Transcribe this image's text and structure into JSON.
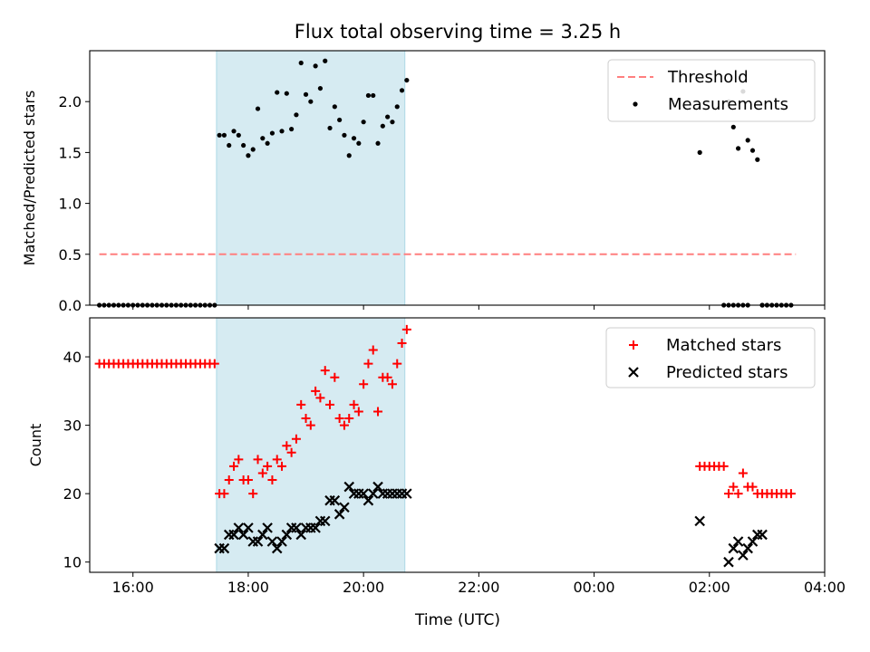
{
  "title": "Flux total observing time = 3.25 h",
  "xlabel": "Time (UTC)",
  "xticks": [
    "16:00",
    "18:00",
    "20:00",
    "22:00",
    "00:00",
    "02:00",
    "04:00"
  ],
  "colors": {
    "threshold": "#ff7f7f",
    "measurements": "#000000",
    "matched": "#ff0000",
    "predicted": "#000000",
    "shade": "#add8e6"
  },
  "chart_data": [
    {
      "type": "scatter",
      "ylabel": "Matched/Predicted stars",
      "yticks": [
        "0.0",
        "0.5",
        "1.0",
        "1.5",
        "2.0"
      ],
      "xlim": [
        "15:15",
        "04:00"
      ],
      "ylim": [
        0,
        2.5
      ],
      "shaded_span": [
        "17:27",
        "20:43"
      ],
      "legend_position": "upper right",
      "series": [
        {
          "name": "Threshold",
          "style": "dashed-line",
          "x": [
            "15:25",
            "03:30"
          ],
          "y": [
            0.5,
            0.5
          ]
        },
        {
          "name": "Measurements",
          "style": "dot",
          "x": [
            "15:25",
            "15:30",
            "15:35",
            "15:40",
            "15:45",
            "15:50",
            "15:55",
            "16:00",
            "16:05",
            "16:10",
            "16:15",
            "16:20",
            "16:25",
            "16:30",
            "16:35",
            "16:40",
            "16:45",
            "16:50",
            "16:55",
            "17:00",
            "17:05",
            "17:10",
            "17:15",
            "17:20",
            "17:25",
            "17:30",
            "17:35",
            "17:40",
            "17:45",
            "17:50",
            "17:55",
            "18:00",
            "18:05",
            "18:10",
            "18:15",
            "18:20",
            "18:25",
            "18:30",
            "18:35",
            "18:40",
            "18:45",
            "18:50",
            "18:55",
            "19:00",
            "19:05",
            "19:10",
            "19:15",
            "19:20",
            "19:25",
            "19:30",
            "19:35",
            "19:40",
            "19:45",
            "19:50",
            "19:55",
            "20:00",
            "20:05",
            "20:10",
            "20:15",
            "20:20",
            "20:25",
            "20:30",
            "20:35",
            "20:40",
            "20:45",
            "01:50",
            "02:20",
            "02:25",
            "02:30",
            "02:35",
            "02:40",
            "02:45",
            "02:50",
            "02:55",
            "02:15",
            "02:20",
            "02:25",
            "02:30",
            "02:35",
            "02:40",
            "02:55",
            "03:00",
            "03:05",
            "03:10",
            "03:15",
            "03:20",
            "03:25"
          ],
          "y": [
            0,
            0,
            0,
            0,
            0,
            0,
            0,
            0,
            0,
            0,
            0,
            0,
            0,
            0,
            0,
            0,
            0,
            0,
            0,
            0,
            0,
            0,
            0,
            0,
            0,
            1.67,
            1.67,
            1.57,
            1.71,
            1.67,
            1.57,
            1.47,
            1.53,
            1.93,
            1.64,
            1.59,
            1.69,
            2.09,
            1.71,
            2.08,
            1.73,
            1.87,
            2.38,
            2.07,
            2.0,
            2.35,
            2.13,
            2.4,
            1.74,
            1.95,
            1.82,
            1.67,
            1.47,
            1.64,
            1.59,
            1.8,
            2.06,
            2.06,
            1.59,
            1.76,
            1.85,
            1.8,
            1.95,
            2.11,
            2.21,
            1.5,
            2.0,
            1.75,
            1.54,
            2.1,
            1.62,
            1.52,
            1.43,
            0,
            0,
            0,
            0,
            0,
            0,
            0,
            0,
            0,
            0,
            0,
            0,
            0,
            0
          ]
        }
      ]
    },
    {
      "type": "scatter",
      "ylabel": "Count",
      "yticks": [
        "10",
        "20",
        "30",
        "40"
      ],
      "xlim": [
        "15:15",
        "04:00"
      ],
      "ylim": [
        8.5,
        45.7
      ],
      "shaded_span": [
        "17:27",
        "20:43"
      ],
      "legend_position": "upper right",
      "series": [
        {
          "name": "Matched stars",
          "style": "plus",
          "x": [
            "15:25",
            "15:30",
            "15:35",
            "15:40",
            "15:45",
            "15:50",
            "15:55",
            "16:00",
            "16:05",
            "16:10",
            "16:15",
            "16:20",
            "16:25",
            "16:30",
            "16:35",
            "16:40",
            "16:45",
            "16:50",
            "16:55",
            "17:00",
            "17:05",
            "17:10",
            "17:15",
            "17:20",
            "17:25",
            "17:30",
            "17:35",
            "17:40",
            "17:45",
            "17:50",
            "17:55",
            "18:00",
            "18:05",
            "18:10",
            "18:15",
            "18:20",
            "18:25",
            "18:30",
            "18:35",
            "18:40",
            "18:45",
            "18:50",
            "18:55",
            "19:00",
            "19:05",
            "19:10",
            "19:15",
            "19:20",
            "19:25",
            "19:30",
            "19:35",
            "19:40",
            "19:45",
            "19:50",
            "19:55",
            "20:00",
            "20:05",
            "20:10",
            "20:15",
            "20:20",
            "20:25",
            "20:30",
            "20:35",
            "20:40",
            "20:45",
            "01:50",
            "01:55",
            "02:00",
            "02:05",
            "02:10",
            "02:15",
            "02:20",
            "02:25",
            "02:30",
            "02:35",
            "02:40",
            "02:45",
            "02:50",
            "02:55",
            "03:00",
            "03:05",
            "03:10",
            "03:15",
            "03:20",
            "03:25"
          ],
          "y": [
            39,
            39,
            39,
            39,
            39,
            39,
            39,
            39,
            39,
            39,
            39,
            39,
            39,
            39,
            39,
            39,
            39,
            39,
            39,
            39,
            39,
            39,
            39,
            39,
            39,
            20,
            20,
            22,
            24,
            25,
            22,
            22,
            20,
            25,
            23,
            24,
            22,
            25,
            24,
            27,
            26,
            28,
            33,
            31,
            30,
            35,
            34,
            38,
            33,
            37,
            31,
            30,
            31,
            33,
            32,
            36,
            39,
            41,
            32,
            37,
            37,
            36,
            39,
            42,
            44,
            24,
            24,
            24,
            24,
            24,
            24,
            20,
            21,
            20,
            23,
            21,
            21,
            20,
            20,
            20,
            20,
            20,
            20,
            20,
            20
          ]
        },
        {
          "name": "Predicted stars",
          "style": "x",
          "x": [
            "17:30",
            "17:35",
            "17:40",
            "17:45",
            "17:50",
            "17:55",
            "18:00",
            "18:05",
            "18:10",
            "18:15",
            "18:20",
            "18:25",
            "18:30",
            "18:35",
            "18:40",
            "18:45",
            "18:50",
            "18:55",
            "19:00",
            "19:05",
            "19:10",
            "19:15",
            "19:20",
            "19:25",
            "19:30",
            "19:35",
            "19:40",
            "19:45",
            "19:50",
            "19:55",
            "20:00",
            "20:05",
            "20:10",
            "20:15",
            "20:20",
            "20:25",
            "20:30",
            "20:35",
            "20:40",
            "20:45",
            "01:50",
            "02:20",
            "02:25",
            "02:30",
            "02:35",
            "02:40",
            "02:45",
            "02:50",
            "02:55"
          ],
          "y": [
            12,
            12,
            14,
            14,
            15,
            14,
            15,
            13,
            13,
            14,
            15,
            13,
            12,
            13,
            14,
            15,
            15,
            14,
            15,
            15,
            15,
            16,
            16,
            19,
            19,
            17,
            18,
            21,
            20,
            20,
            20,
            19,
            20,
            21,
            20,
            20,
            20,
            20,
            20,
            20,
            16,
            10,
            12,
            13,
            11,
            12,
            13,
            14,
            14
          ]
        }
      ]
    }
  ]
}
